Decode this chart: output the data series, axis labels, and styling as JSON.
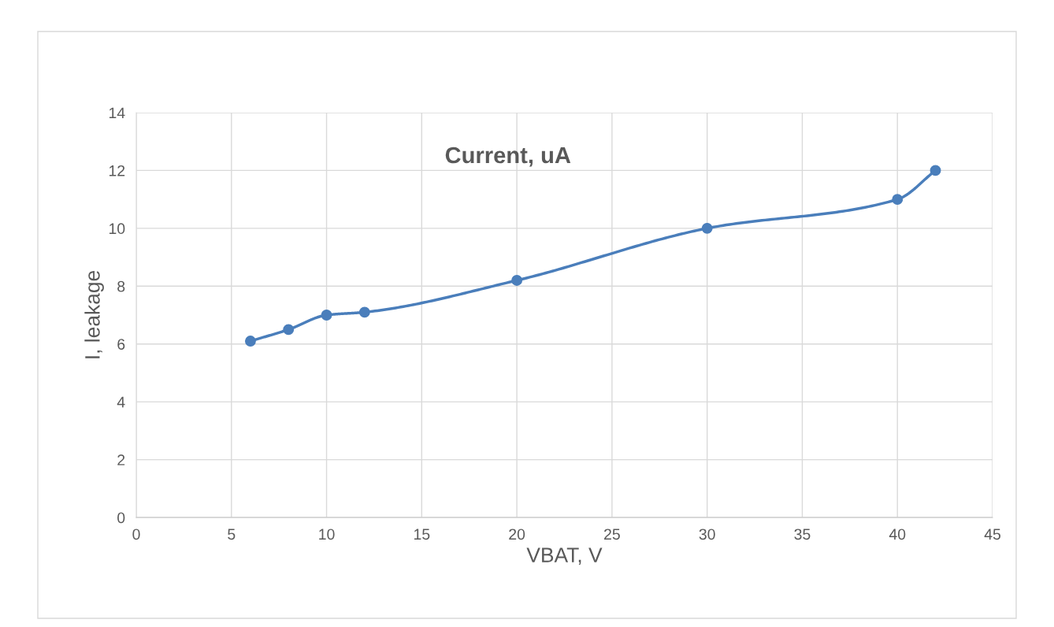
{
  "chart_data": {
    "type": "line",
    "title": "Current, uA",
    "xlabel": "VBAT, V",
    "ylabel": "I, leakage",
    "x": [
      6,
      8,
      10,
      12,
      20,
      30,
      40,
      42
    ],
    "series": [
      {
        "color": "#4a7ebb",
        "values": [
          6.1,
          6.5,
          7.0,
          7.1,
          8.2,
          10.0,
          11.0,
          12.0
        ]
      }
    ],
    "xlim": [
      0,
      45
    ],
    "xticks": [
      0,
      5,
      10,
      15,
      20,
      25,
      30,
      35,
      40,
      45
    ],
    "ylim": [
      0,
      14
    ],
    "yticks": [
      0,
      2,
      4,
      6,
      8,
      10,
      12,
      14
    ],
    "grid": true,
    "marker": "circle",
    "line_style": "solid"
  }
}
